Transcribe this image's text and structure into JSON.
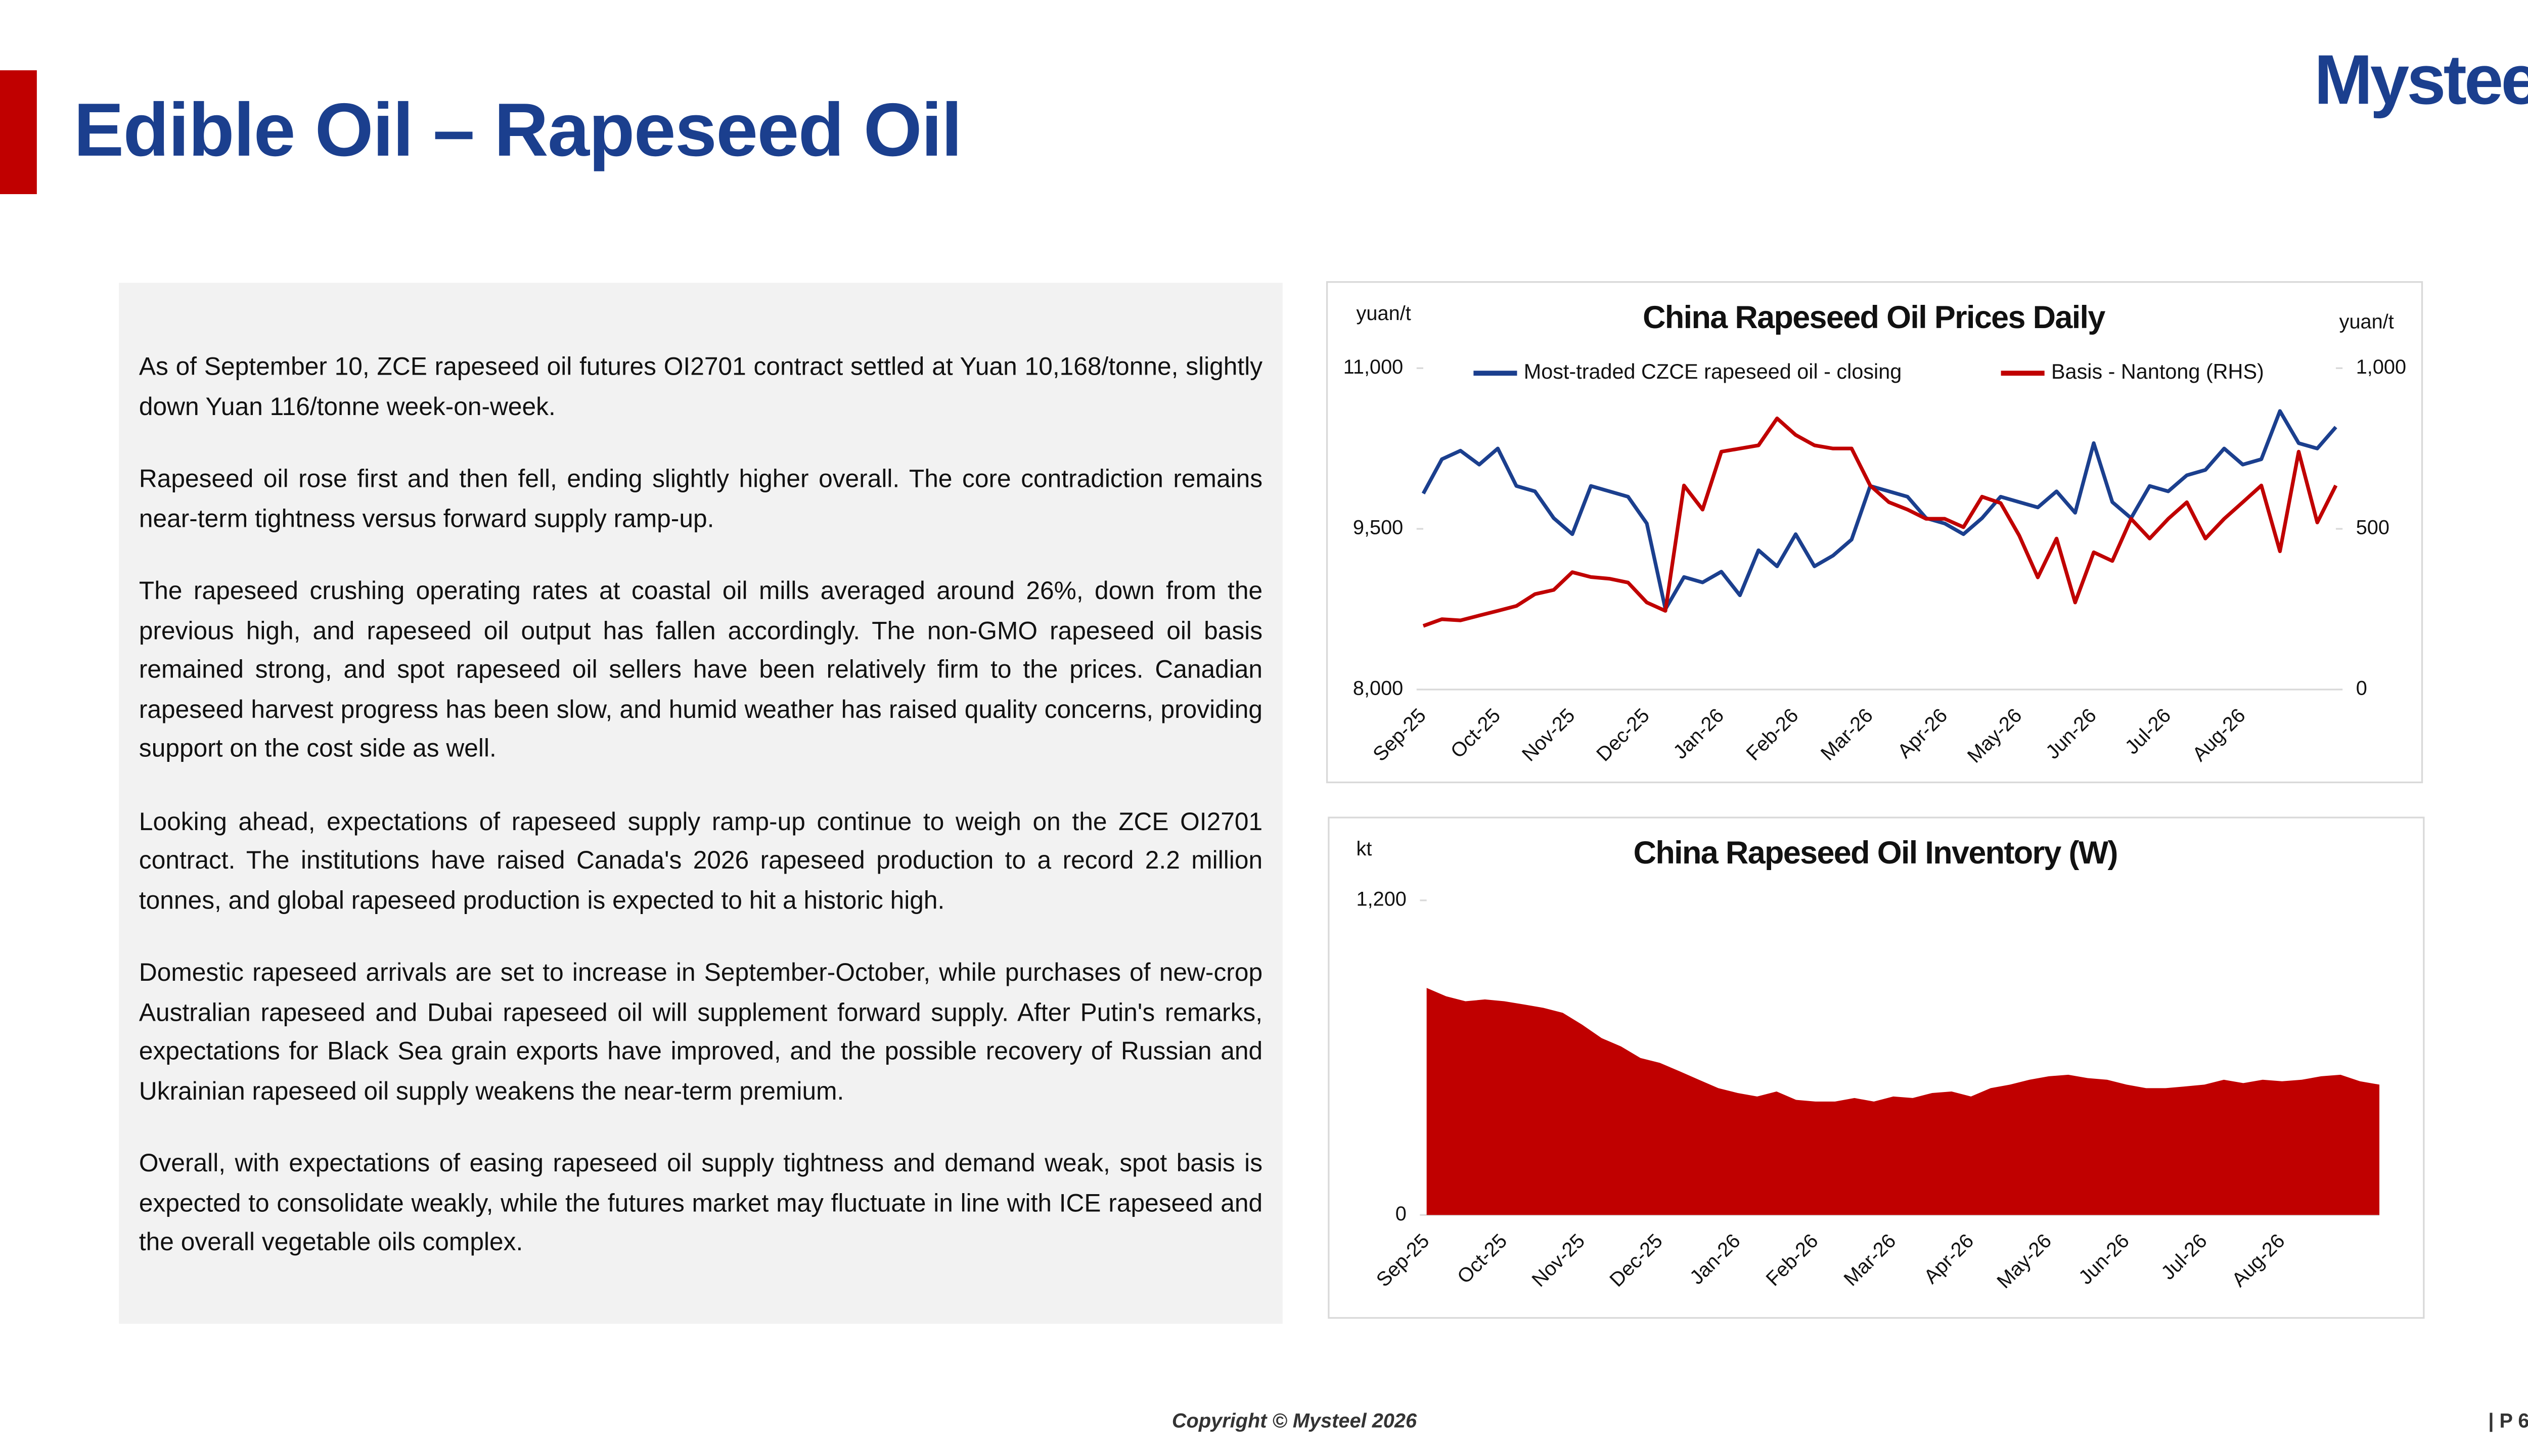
{
  "header": {
    "title": "Edible Oil – Rapeseed Oil",
    "logo": "Mysteel"
  },
  "body": {
    "paragraphs": [
      "As of September 10, ZCE rapeseed oil futures OI2701 contract settled at Yuan 10,168/tonne, slightly down Yuan 116/tonne week-on-week.",
      "Rapeseed oil rose first and then fell, ending slightly higher overall. The core contradiction remains near-term tightness versus forward supply ramp-up.",
      "The rapeseed crushing operating rates at coastal oil mills averaged around 26%, down from the previous high, and rapeseed oil output has fallen accordingly. The non-GMO rapeseed oil basis remained strong, and spot rapeseed oil sellers have been relatively firm to the prices. Canadian rapeseed harvest progress has been slow, and humid weather has raised quality concerns, providing support on the cost side as well.",
      "Looking ahead, expectations of rapeseed supply ramp-up continue to weigh on the ZCE OI2701 contract. The institutions have raised Canada's 2026 rapeseed production to a record 2.2 million tonnes, and global rapeseed production is expected to hit a historic high.",
      "Domestic rapeseed arrivals are set to increase in September-October, while purchases of new-crop Australian rapeseed and Dubai rapeseed oil will supplement forward supply. After Putin's remarks, expectations for Black Sea grain exports have improved, and the possible recovery of Russian and Ukrainian rapeseed oil supply weakens the near-term premium.",
      "Overall, with expectations of easing rapeseed oil supply tightness and demand weak, spot basis is expected to consolidate weakly, while the futures market may fluctuate in line with ICE rapeseed and the overall vegetable oils complex."
    ]
  },
  "chart_data": [
    {
      "type": "line",
      "title": "China Rapeseed Oil Prices Daily",
      "y_label": "yuan/t",
      "y2_label": "yuan/t",
      "categories": [
        "Sep-25",
        null,
        null,
        null,
        "Oct-25",
        null,
        null,
        null,
        "Nov-25",
        null,
        null,
        null,
        "Dec-25",
        null,
        null,
        null,
        "Jan-26",
        null,
        null,
        null,
        "Feb-26",
        null,
        null,
        null,
        "Mar-26",
        null,
        null,
        null,
        "Apr-26",
        null,
        null,
        null,
        "May-26",
        null,
        null,
        null,
        "Jun-26",
        null,
        null,
        null,
        "Jul-26",
        null,
        null,
        null,
        "Aug-26",
        null,
        null,
        null,
        null,
        null
      ],
      "ylim": [
        8000,
        11000
      ],
      "yticks": [
        {
          "value": 8000,
          "label": "8,000"
        },
        {
          "value": 9500,
          "label": "9,500"
        },
        {
          "value": 11000,
          "label": "11,000"
        }
      ],
      "y2lim": [
        0,
        1000
      ],
      "y2ticks": [
        0,
        500,
        {
          "value": 1000,
          "label": "1,000"
        }
      ],
      "grid": false,
      "legend": "top",
      "series": [
        {
          "name": "Most-traded CZCE rapeseed oil - closing",
          "color": "#1b3f8e",
          "values": [
            9830,
            10150,
            10230,
            10100,
            10250,
            9900,
            9850,
            9600,
            9450,
            9900,
            9850,
            9800,
            9550,
            8750,
            9050,
            9000,
            9100,
            8880,
            9300,
            9150,
            9450,
            9150,
            9250,
            9400,
            9900,
            9850,
            9800,
            9600,
            9550,
            9450,
            9600,
            9800,
            9750,
            9700,
            9850,
            9650,
            10300,
            9750,
            9600,
            9900,
            9850,
            10000,
            10050,
            10250,
            10100,
            10150,
            10600,
            10300,
            10250,
            10450
          ]
        },
        {
          "name": "Basis - Nantong (RHS)",
          "color": "#c00000",
          "axis": "y2",
          "values": [
            198,
            219,
            215,
            230,
            245,
            260,
            297,
            310,
            365,
            350,
            345,
            333,
            271,
            245,
            635,
            560,
            740,
            750,
            760,
            844,
            792,
            760,
            750,
            750,
            635,
            583,
            560,
            531,
            531,
            505,
            600,
            580,
            479,
            349,
            470,
            271,
            427,
            400,
            531,
            470,
            531,
            583,
            470,
            531,
            583,
            635,
            430,
            740,
            520,
            635
          ]
        }
      ]
    },
    {
      "type": "area",
      "title": "China Rapeseed Oil Inventory (W)",
      "y_label": "kt",
      "categories": [
        "Sep-25",
        null,
        null,
        null,
        "Oct-25",
        null,
        null,
        null,
        "Nov-25",
        null,
        null,
        null,
        "Dec-25",
        null,
        null,
        null,
        "Jan-26",
        null,
        null,
        null,
        "Feb-26",
        null,
        null,
        null,
        "Mar-26",
        null,
        null,
        null,
        "Apr-26",
        null,
        null,
        null,
        "May-26",
        null,
        null,
        null,
        "Jun-26",
        null,
        null,
        null,
        "Jul-26",
        null,
        null,
        null,
        "Aug-26",
        null,
        null,
        null,
        null,
        null
      ],
      "ylim": [
        0,
        1200
      ],
      "yticks": [
        0,
        {
          "value": 1200,
          "label": "1,200"
        }
      ],
      "grid": false,
      "color": "#c00000",
      "values": [
        866,
        834,
        815,
        822,
        815,
        803,
        790,
        771,
        726,
        675,
        643,
        599,
        580,
        548,
        516,
        484,
        465,
        452,
        471,
        439,
        433,
        433,
        446,
        433,
        452,
        446,
        465,
        471,
        452,
        484,
        497,
        516,
        529,
        535,
        522,
        516,
        497,
        484,
        484,
        490,
        497,
        516,
        503,
        516,
        510,
        516,
        529,
        535,
        510,
        497
      ]
    }
  ],
  "footer": {
    "copyright": "Copyright © Mysteel 2026",
    "page": "| P 6"
  }
}
